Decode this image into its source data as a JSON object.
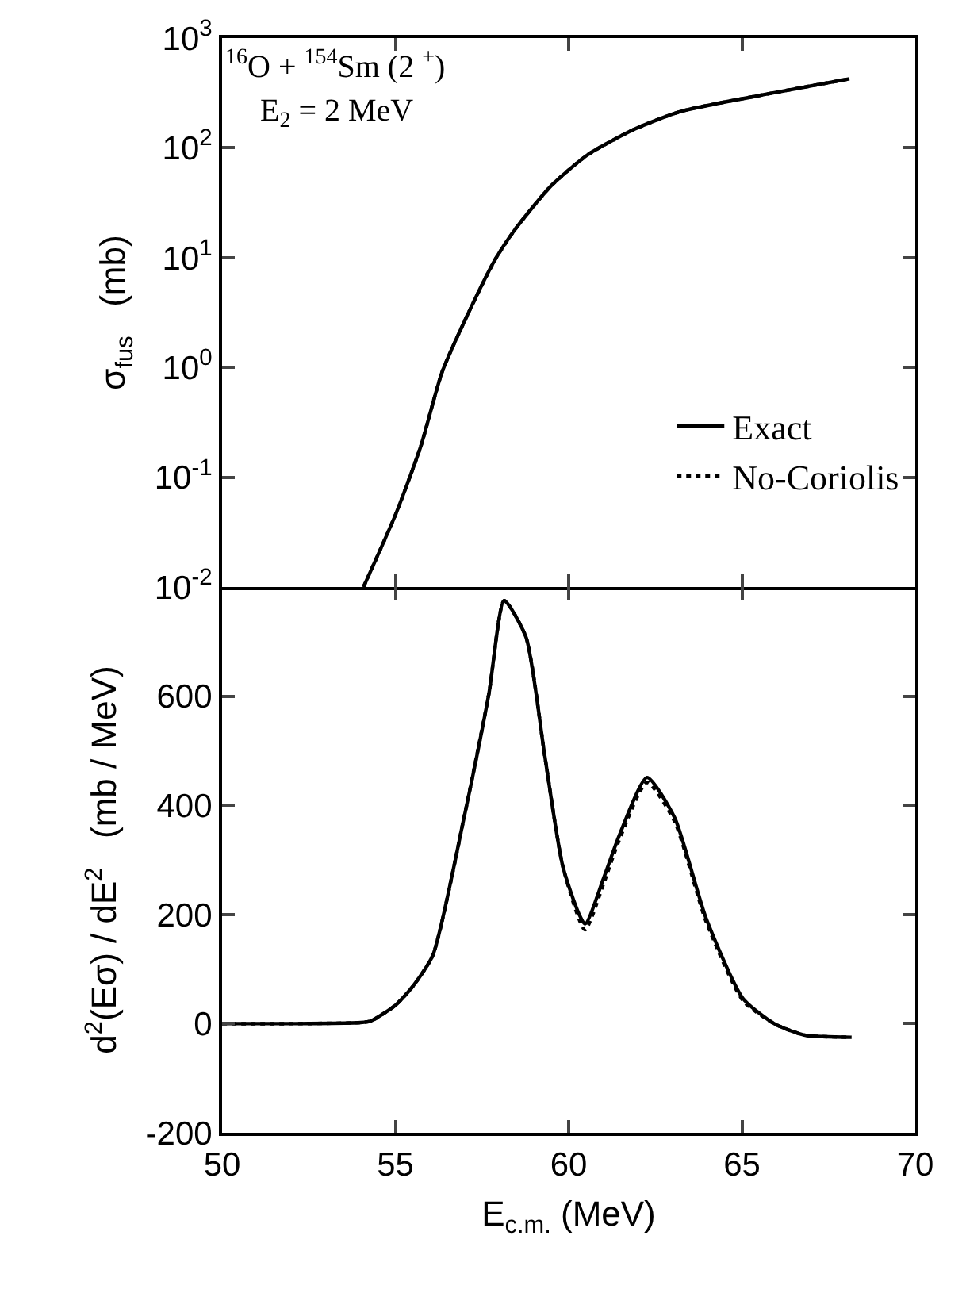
{
  "chart_data": [
    {
      "type": "line",
      "ylabel": "σ$_{fus}$   (mb)",
      "log": "y",
      "xlim": [
        50,
        70
      ],
      "ylim": [
        0.01,
        1000
      ],
      "tick_labels": "y",
      "grid": false,
      "legend": "bottom right",
      "marker": "none",
      "yticks": [
        {
          "value": 0.01,
          "label": "10$^{-2}$"
        },
        {
          "value": 0.1,
          "label": "10$^{-1}$"
        },
        {
          "value": 1,
          "label": "10$^{0}$"
        },
        {
          "value": 10,
          "label": "10$^{1}$"
        },
        {
          "value": 100,
          "label": "10$^{2}$"
        },
        {
          "value": 1000,
          "label": "10$^{3}$"
        }
      ],
      "xticks": [
        {
          "value": 50,
          "label": null
        },
        {
          "value": 55,
          "label": null
        },
        {
          "value": 60,
          "label": null
        },
        {
          "value": 65,
          "label": null
        },
        {
          "value": 70,
          "label": null
        }
      ],
      "annotations": [
        "$^{16}$O + $^{154}$Sm (2 $^{+}$)",
        "E$_{2}$ = 2 MeV"
      ],
      "x": [
        54.08,
        55.01,
        55.73,
        56.35,
        57.16,
        57.87,
        58.45,
        59.49,
        60.56,
        61.9,
        63.24,
        65.93,
        68.1
      ],
      "series": [
        {
          "name": "Exact",
          "color": "#000000",
          "line_style": "solid",
          "values": [
            0.01,
            0.046,
            0.19,
            0.91,
            3.4,
            9.5,
            18,
            45,
            87,
            148,
            215,
            318,
            425
          ]
        },
        {
          "name": "No-Coriolis",
          "color": "#000000",
          "line_style": "dotted",
          "values": [
            0.01,
            0.046,
            0.19,
            0.91,
            3.4,
            9.5,
            18,
            45,
            87,
            148,
            215,
            318,
            425
          ]
        }
      ]
    },
    {
      "type": "line",
      "xlabel": "E$_{c.m.}$ (MeV)",
      "ylabel": "d$^{2}$(Eσ) / dE$^{2}$   (mb / MeV)",
      "xlim": [
        50,
        70
      ],
      "ylim": [
        -200,
        800
      ],
      "grid": false,
      "legend": false,
      "marker": "none",
      "xticks": [
        50,
        55,
        60,
        65,
        70
      ],
      "yticks": [
        -200,
        0,
        200,
        400,
        600
      ],
      "x": [
        50,
        52,
        54,
        54.3,
        55.01,
        55.5,
        56.08,
        56.98,
        57.7,
        58.14,
        58.77,
        59.31,
        59.84,
        60.47,
        61.0,
        61.45,
        62.26,
        63.06,
        63.96,
        65.03,
        65.93,
        66.8,
        68.16
      ],
      "series": [
        {
          "color": "#000000",
          "line_style": "solid",
          "values": [
            0,
            0,
            2,
            5,
            34,
            68,
            125,
            377,
            605,
            775,
            708,
            491,
            286,
            183,
            265,
            343,
            451,
            377,
            194,
            46,
            0,
            -21,
            -25
          ]
        },
        {
          "color": "#000000",
          "line_style": "dotted",
          "values": [
            0,
            0,
            2,
            5,
            34,
            68,
            125,
            377,
            605,
            775,
            708,
            491,
            286,
            172,
            255,
            335,
            442,
            370,
            188,
            42,
            0,
            -21,
            -25
          ]
        }
      ]
    }
  ]
}
